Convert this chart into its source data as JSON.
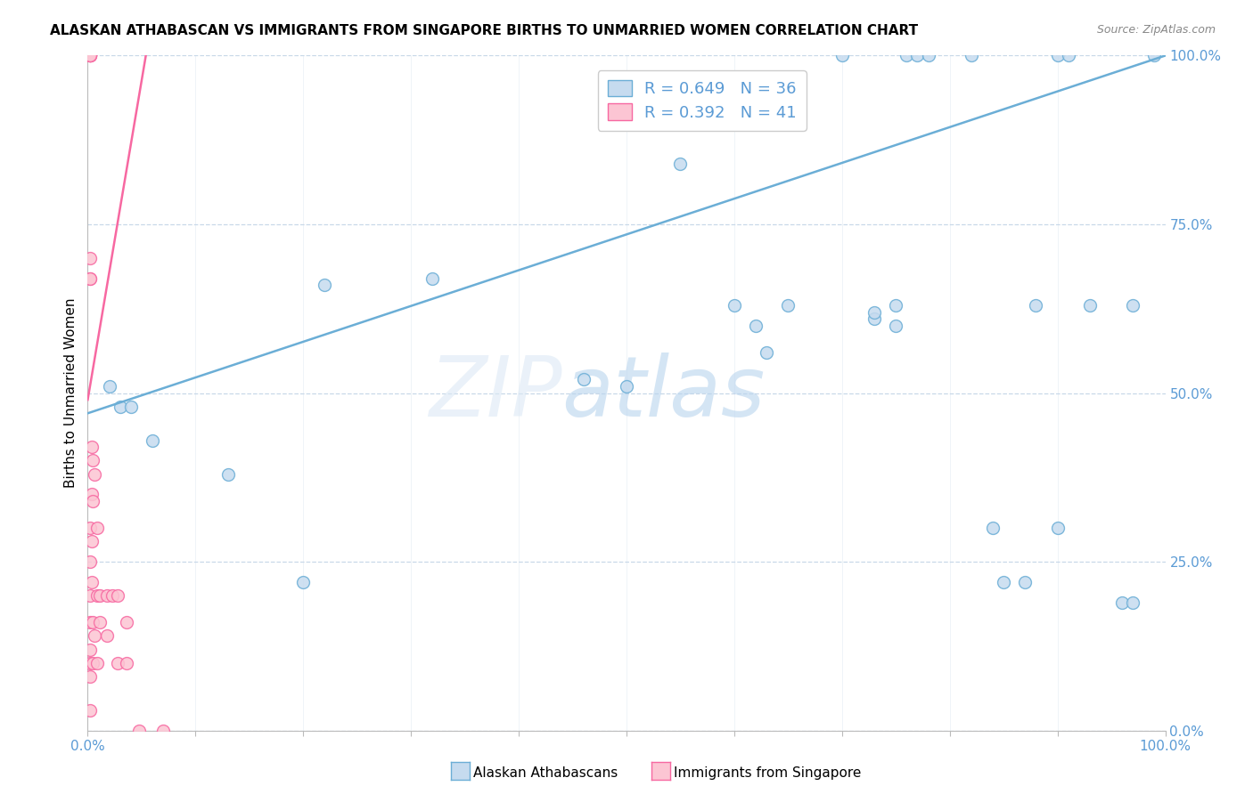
{
  "title": "ALASKAN ATHABASCAN VS IMMIGRANTS FROM SINGAPORE BIRTHS TO UNMARRIED WOMEN CORRELATION CHART",
  "source": "Source: ZipAtlas.com",
  "ylabel": "Births to Unmarried Women",
  "x_min": 0.0,
  "x_max": 1.0,
  "y_min": 0.0,
  "y_max": 1.0,
  "x_tick_positions": [
    0.0,
    0.1,
    0.2,
    0.3,
    0.4,
    0.5,
    0.6,
    0.7,
    0.8,
    0.9,
    1.0
  ],
  "x_tick_labels_bottom": [
    "0.0%",
    "",
    "",
    "",
    "",
    "",
    "",
    "",
    "",
    "",
    "100.0%"
  ],
  "y_ticks": [
    0.0,
    0.25,
    0.5,
    0.75,
    1.0
  ],
  "y_tick_labels": [
    "0.0%",
    "25.0%",
    "50.0%",
    "75.0%",
    "100.0%"
  ],
  "blue_scatter_x": [
    0.02,
    0.03,
    0.04,
    0.06,
    0.13,
    0.22,
    0.32,
    0.46,
    0.55,
    0.62,
    0.65,
    0.73,
    0.75,
    0.76,
    0.77,
    0.78,
    0.82,
    0.84,
    0.85,
    0.87,
    0.88,
    0.9,
    0.91,
    0.93,
    0.96,
    0.97,
    0.99,
    0.2,
    0.5,
    0.6,
    0.63,
    0.7,
    0.73,
    0.75,
    0.9,
    0.97
  ],
  "blue_scatter_y": [
    0.51,
    0.48,
    0.48,
    0.43,
    0.38,
    0.66,
    0.67,
    0.52,
    0.84,
    0.6,
    0.63,
    0.61,
    0.63,
    1.0,
    1.0,
    1.0,
    1.0,
    0.3,
    0.22,
    0.22,
    0.63,
    1.0,
    1.0,
    0.63,
    0.19,
    0.19,
    1.0,
    0.22,
    0.51,
    0.63,
    0.56,
    1.0,
    0.62,
    0.6,
    0.3,
    0.63
  ],
  "pink_scatter_x": [
    0.002,
    0.002,
    0.002,
    0.002,
    0.002,
    0.002,
    0.002,
    0.002,
    0.002,
    0.002,
    0.002,
    0.002,
    0.002,
    0.002,
    0.002,
    0.002,
    0.002,
    0.004,
    0.004,
    0.004,
    0.004,
    0.005,
    0.005,
    0.005,
    0.005,
    0.006,
    0.006,
    0.009,
    0.009,
    0.009,
    0.011,
    0.011,
    0.018,
    0.018,
    0.023,
    0.028,
    0.028,
    0.036,
    0.036,
    0.048,
    0.07
  ],
  "pink_scatter_y": [
    1.0,
    1.0,
    1.0,
    1.0,
    1.0,
    1.0,
    0.7,
    0.67,
    0.67,
    0.3,
    0.25,
    0.2,
    0.16,
    0.12,
    0.1,
    0.08,
    0.03,
    0.42,
    0.35,
    0.28,
    0.22,
    0.4,
    0.34,
    0.16,
    0.1,
    0.38,
    0.14,
    0.3,
    0.2,
    0.1,
    0.2,
    0.16,
    0.2,
    0.14,
    0.2,
    0.2,
    0.1,
    0.16,
    0.1,
    0.0,
    0.0
  ],
  "blue_fill_color": "#c6dbef",
  "blue_edge_color": "#6baed6",
  "pink_fill_color": "#fcc5d3",
  "pink_edge_color": "#f768a1",
  "blue_line_color": "#6baed6",
  "pink_line_color": "#f768a1",
  "blue_R": 0.649,
  "blue_N": 36,
  "pink_R": 0.392,
  "pink_N": 41,
  "blue_line_x0": 0.0,
  "blue_line_y0": 0.47,
  "blue_line_x1": 1.0,
  "blue_line_y1": 1.0,
  "pink_line_x0": 0.0,
  "pink_line_y0": 0.49,
  "pink_line_x1": 0.055,
  "pink_line_y1": 1.01,
  "watermark_zip": "ZIP",
  "watermark_atlas": "atlas",
  "legend_fontsize": 13,
  "title_fontsize": 11,
  "tick_fontsize": 11,
  "ylabel_fontsize": 11,
  "background_color": "#ffffff",
  "grid_color": "#c8d8e8",
  "tick_color": "#5b9bd5",
  "dashed_line_y": 1.0,
  "scatter_size": 100
}
